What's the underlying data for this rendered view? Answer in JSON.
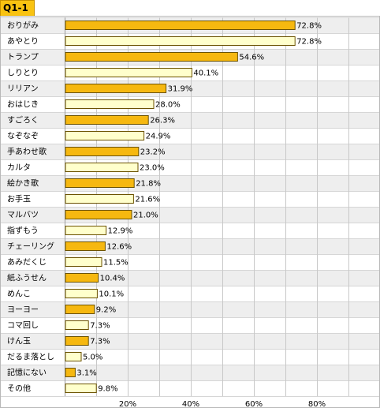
{
  "question_label": "Q1-1",
  "colors": {
    "primary_bar": "#f6b810",
    "secondary_bar": "#ffffcc",
    "bar_stroke": "#6b5200",
    "alt_row": "#eeeeee",
    "grid": "#c8c8c8"
  },
  "chart_data": {
    "type": "bar",
    "orientation": "horizontal",
    "title": "",
    "xlabel": "",
    "ylabel": "",
    "xlim": [
      0,
      100
    ],
    "x_ticks": [
      20,
      40,
      60,
      80
    ],
    "tick_labels": [
      "20%",
      "40%",
      "60%",
      "80%"
    ],
    "grid": true,
    "categories": [
      "おりがみ",
      "あやとり",
      "トランプ",
      "しりとり",
      "リリアン",
      "おはじき",
      "すごろく",
      "なぞなぞ",
      "手あわせ歌",
      "カルタ",
      "絵かき歌",
      "お手玉",
      "マルバツ",
      "指ずもう",
      "チェーリング",
      "あみだくじ",
      "紙ふうせん",
      "めんこ",
      "ヨーヨー",
      "コマ回し",
      "けん玉",
      "だるま落とし",
      "記憶にない",
      "その他"
    ],
    "values": [
      72.8,
      72.8,
      54.6,
      40.1,
      31.9,
      28.0,
      26.3,
      24.9,
      23.2,
      23.0,
      21.8,
      21.6,
      21.0,
      12.9,
      12.6,
      11.5,
      10.4,
      10.1,
      9.2,
      7.3,
      7.3,
      5.0,
      3.1,
      9.8
    ],
    "value_labels": [
      "72.8%",
      "72.8%",
      "54.6%",
      "40.1%",
      "31.9%",
      "28.0%",
      "26.3%",
      "24.9%",
      "23.2%",
      "23.0%",
      "21.8%",
      "21.6%",
      "21.0%",
      "12.9%",
      "12.6%",
      "11.5%",
      "10.4%",
      "10.1%",
      "9.2%",
      "7.3%",
      "7.3%",
      "5.0%",
      "3.1%",
      "9.8%"
    ],
    "highlight": [
      true,
      false,
      true,
      false,
      true,
      false,
      true,
      false,
      true,
      false,
      true,
      false,
      true,
      false,
      true,
      false,
      true,
      false,
      true,
      false,
      true,
      false,
      true,
      false
    ]
  }
}
